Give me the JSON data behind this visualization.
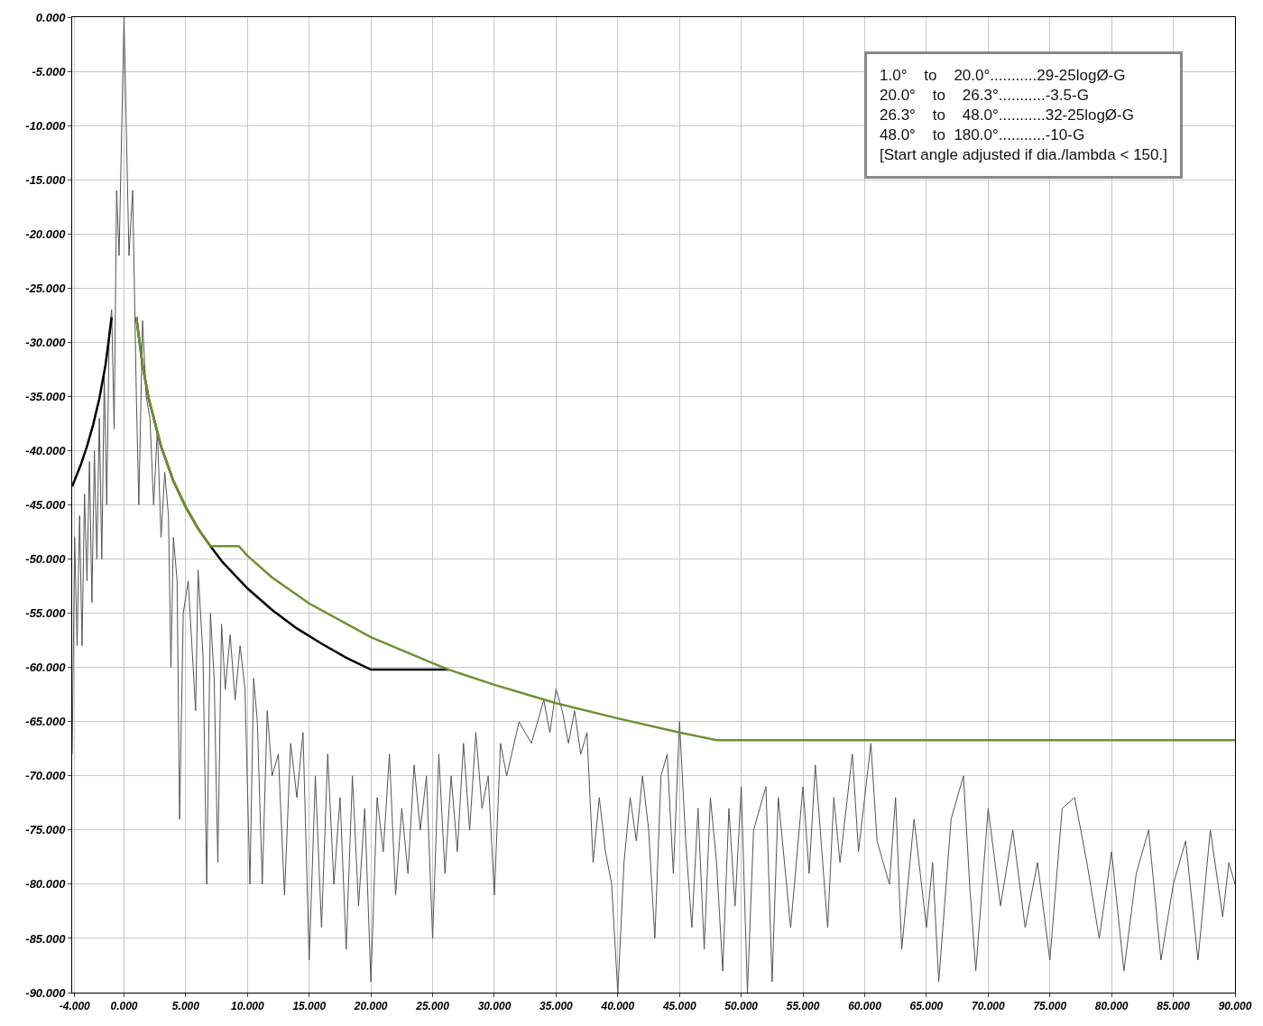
{
  "chart_data": {
    "type": "line",
    "xlim": [
      -4.2,
      90
    ],
    "ylim": [
      -90,
      0
    ],
    "xticks": [
      {
        "value": -4,
        "label": "-4.000"
      },
      {
        "value": 0,
        "label": "0.000"
      },
      {
        "value": 5,
        "label": "5.000"
      },
      {
        "value": 10,
        "label": "10.000"
      },
      {
        "value": 15,
        "label": "15.000"
      },
      {
        "value": 20,
        "label": "20.000"
      },
      {
        "value": 25,
        "label": "25.000"
      },
      {
        "value": 30,
        "label": "30.000"
      },
      {
        "value": 35,
        "label": "35.000"
      },
      {
        "value": 40,
        "label": "40.000"
      },
      {
        "value": 45,
        "label": "45.000"
      },
      {
        "value": 50,
        "label": "50.000"
      },
      {
        "value": 55,
        "label": "55.000"
      },
      {
        "value": 60,
        "label": "60.000"
      },
      {
        "value": 65,
        "label": "65.000"
      },
      {
        "value": 70,
        "label": "70.000"
      },
      {
        "value": 75,
        "label": "75.000"
      },
      {
        "value": 80,
        "label": "80.000"
      },
      {
        "value": 85,
        "label": "85.000"
      },
      {
        "value": 90,
        "label": "90.000"
      }
    ],
    "yticks": [
      {
        "value": 0,
        "label": "0.000"
      },
      {
        "value": -5,
        "label": "-5.000"
      },
      {
        "value": -10,
        "label": "-10.000"
      },
      {
        "value": -15,
        "label": "-15.000"
      },
      {
        "value": -20,
        "label": "-20.000"
      },
      {
        "value": -25,
        "label": "-25.000"
      },
      {
        "value": -30,
        "label": "-30.000"
      },
      {
        "value": -35,
        "label": "-35.000"
      },
      {
        "value": -40,
        "label": "-40.000"
      },
      {
        "value": -45,
        "label": "-45.000"
      },
      {
        "value": -50,
        "label": "-50.000"
      },
      {
        "value": -55,
        "label": "-55.000"
      },
      {
        "value": -60,
        "label": "-60.000"
      },
      {
        "value": -65,
        "label": "-65.000"
      },
      {
        "value": -70,
        "label": "-70.000"
      },
      {
        "value": -75,
        "label": "-75.000"
      },
      {
        "value": -80,
        "label": "-80.000"
      },
      {
        "value": -85,
        "label": "-85.000"
      },
      {
        "value": -90,
        "label": "-90.000"
      }
    ],
    "grid": true,
    "marker": "none",
    "line_style": "solid",
    "annotations": [
      "1.0°    to    20.0°...........29-25logØ-G",
      "20.0°    to    26.3°...........-3.5-G",
      "26.3°    to    48.0°...........32-25logØ-G",
      "48.0°    to  180.0°...........-10-G",
      "[Start angle adjusted if dia./lambda < 150.]"
    ],
    "series": [
      {
        "color": "#555555",
        "x": [
          -4.2,
          -4.0,
          -3.8,
          -3.6,
          -3.4,
          -3.2,
          -3.0,
          -2.8,
          -2.6,
          -2.4,
          -2.2,
          -2.0,
          -1.8,
          -1.6,
          -1.4,
          -1.2,
          -1.0,
          -0.8,
          -0.6,
          -0.4,
          0,
          0.4,
          0.7,
          1.0,
          1.2,
          1.5,
          1.8,
          2.1,
          2.4,
          2.7,
          3.0,
          3.3,
          3.6,
          3.8,
          4.0,
          4.3,
          4.5,
          4.8,
          5.2,
          5.5,
          5.8,
          6.0,
          6.4,
          6.7,
          7.0,
          7.3,
          7.6,
          7.9,
          8.2,
          8.6,
          9.0,
          9.4,
          9.8,
          10.2,
          10.5,
          10.8,
          11.2,
          11.6,
          12,
          12.5,
          13,
          13.5,
          14,
          14.5,
          15,
          15.5,
          16,
          16.5,
          17,
          17.5,
          18,
          18.5,
          19,
          19.5,
          20,
          20.5,
          21,
          21.5,
          22,
          22.5,
          23,
          23.5,
          24,
          24.5,
          25,
          25.5,
          26,
          26.5,
          27,
          27.5,
          28,
          28.5,
          29,
          29.5,
          30,
          30.5,
          31,
          32,
          33,
          34,
          34.5,
          35,
          35.5,
          36,
          36.5,
          37,
          37.5,
          38,
          38.5,
          39,
          39.5,
          40,
          40.5,
          41,
          41.5,
          42,
          42.5,
          43,
          43.5,
          44,
          44.5,
          45,
          45.5,
          46,
          46.5,
          47,
          47.5,
          48,
          48.5,
          49,
          49.5,
          50,
          50.5,
          51,
          52,
          52.5,
          53,
          54,
          55,
          55.5,
          56,
          57,
          57.5,
          58,
          59,
          59.5,
          60,
          60.5,
          61,
          62,
          62.5,
          63,
          64,
          65,
          65.5,
          66,
          67,
          68,
          68.5,
          69,
          70,
          71,
          72,
          73,
          74,
          75,
          76,
          77,
          78,
          79,
          80,
          81,
          82,
          83,
          84,
          85,
          86,
          87,
          88,
          89,
          89.5,
          90
        ],
        "values": [
          -68,
          -48,
          -58,
          -46,
          -58,
          -44,
          -52,
          -41,
          -54,
          -40,
          -50,
          -37,
          -50,
          -33,
          -45,
          -29,
          -27,
          -38,
          -16,
          -22,
          0,
          -22,
          -16,
          -35,
          -45,
          -28,
          -35,
          -37,
          -45,
          -38,
          -48,
          -42,
          -46,
          -60,
          -48,
          -52,
          -74,
          -55,
          -52,
          -58,
          -64,
          -51,
          -59,
          -80,
          -55,
          -61,
          -78,
          -56,
          -62,
          -57,
          -63,
          -58,
          -62,
          -80,
          -61,
          -65,
          -80,
          -64,
          -70,
          -68,
          -81,
          -67,
          -72,
          -66,
          -87,
          -70,
          -84,
          -68,
          -80,
          -72,
          -86,
          -70,
          -82,
          -73,
          -89,
          -72,
          -77,
          -68,
          -81,
          -73,
          -79,
          -69,
          -75,
          -70,
          -85,
          -68,
          -79,
          -70,
          -77,
          -67,
          -75,
          -66,
          -73,
          -70,
          -81,
          -67,
          -70,
          -65,
          -67,
          -63,
          -66,
          -62,
          -64,
          -67,
          -64,
          -68,
          -66,
          -78,
          -72,
          -77,
          -80,
          -90,
          -78,
          -72,
          -76,
          -70,
          -75,
          -85,
          -70,
          -68,
          -79,
          -65,
          -76,
          -84,
          -73,
          -86,
          -72,
          -78,
          -88,
          -73,
          -82,
          -71,
          -90,
          -75,
          -71,
          -89,
          -72,
          -84,
          -71,
          -79,
          -69,
          -84,
          -72,
          -78,
          -68,
          -77,
          -72,
          -67,
          -76,
          -80,
          -72,
          -86,
          -74,
          -84,
          -78,
          -89,
          -74,
          -70,
          -80,
          -88,
          -73,
          -82,
          -75,
          -84,
          -78,
          -87,
          -73,
          -72,
          -78,
          -85,
          -77,
          -88,
          -79,
          -75,
          -87,
          -80,
          -76,
          -87,
          -75,
          -83,
          -78,
          -80
        ]
      },
      {
        "color": "#000000",
        "x": [
          -4.2,
          -3.5,
          -3,
          -2.5,
          -2,
          -1.5,
          -1
        ],
        "values": [
          -43.3,
          -41.3,
          -39.6,
          -37.6,
          -35.2,
          -32.1,
          -27.7
        ]
      },
      {
        "color": "#000000",
        "x": [
          1,
          1.5,
          2,
          3,
          4,
          5,
          6,
          7,
          8,
          10,
          12,
          14,
          16,
          18,
          20,
          26.3
        ],
        "values": [
          -27.7,
          -32.1,
          -35.2,
          -39.6,
          -42.8,
          -45.2,
          -47.2,
          -48.8,
          -50.3,
          -52.7,
          -54.7,
          -56.4,
          -57.8,
          -59.1,
          -60.2,
          -60.2
        ]
      },
      {
        "color": "#6f9130",
        "x": [
          1,
          1.5,
          2,
          3,
          4,
          5,
          6,
          7,
          9.3,
          10,
          12,
          15,
          20,
          25,
          26.3,
          30,
          35,
          40,
          45,
          48,
          90
        ],
        "values": [
          -27.7,
          -32.1,
          -35.2,
          -39.6,
          -42.8,
          -45.2,
          -47.2,
          -48.8,
          -48.8,
          -49.7,
          -51.7,
          -54.1,
          -57.2,
          -59.6,
          -60.2,
          -61.6,
          -63.3,
          -64.7,
          -66.0,
          -66.7,
          -66.7
        ]
      }
    ]
  }
}
